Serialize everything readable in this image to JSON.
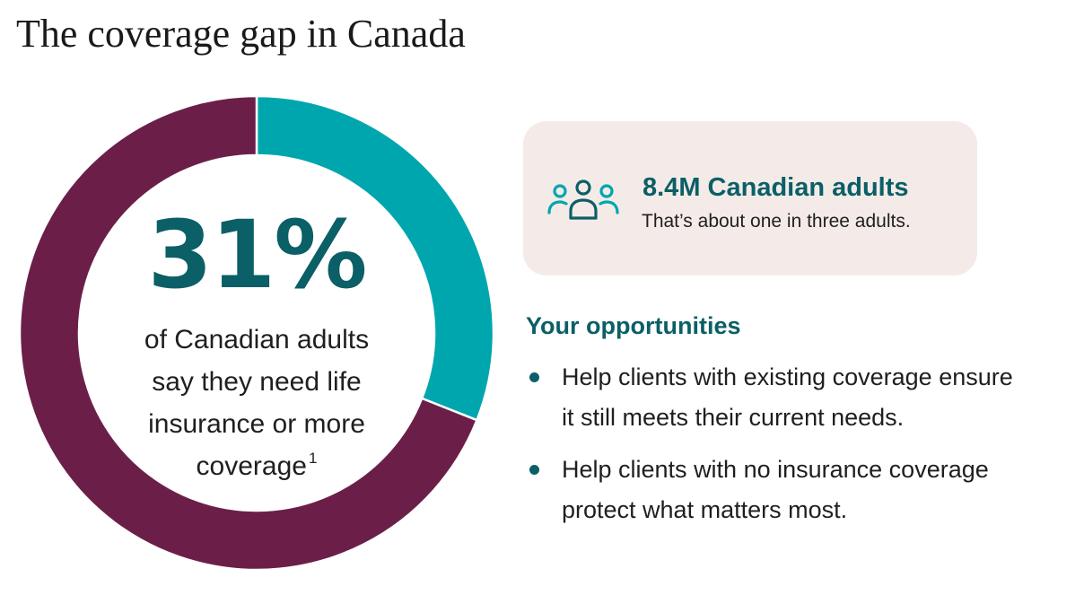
{
  "title": "The coverage gap in Canada",
  "chart_data": {
    "type": "pie",
    "variant": "donut",
    "values": [
      31,
      69
    ],
    "colors": [
      "#00a6ae",
      "#6b1f48"
    ],
    "center_value": "31%",
    "center_text_lines": [
      "of Canadian adults",
      "say they need life",
      "insurance or more",
      "coverage"
    ],
    "center_footnote": "1"
  },
  "stat_card": {
    "icon": "people-group-icon",
    "headline": "8.4M Canadian adults",
    "subtext": "That’s about one in three adults."
  },
  "opportunities": {
    "heading": "Your opportunities",
    "items": [
      {
        "lines": [
          "Help clients with existing coverage ensure",
          "it still meets their current needs."
        ]
      },
      {
        "lines": [
          "Help clients with no insurance coverage",
          "protect what matters most."
        ]
      }
    ]
  },
  "colors": {
    "accent_teal": "#00a6ae",
    "dark_teal": "#0b5f66",
    "plum": "#6b1f48",
    "card_background": "#f4ebe8"
  }
}
